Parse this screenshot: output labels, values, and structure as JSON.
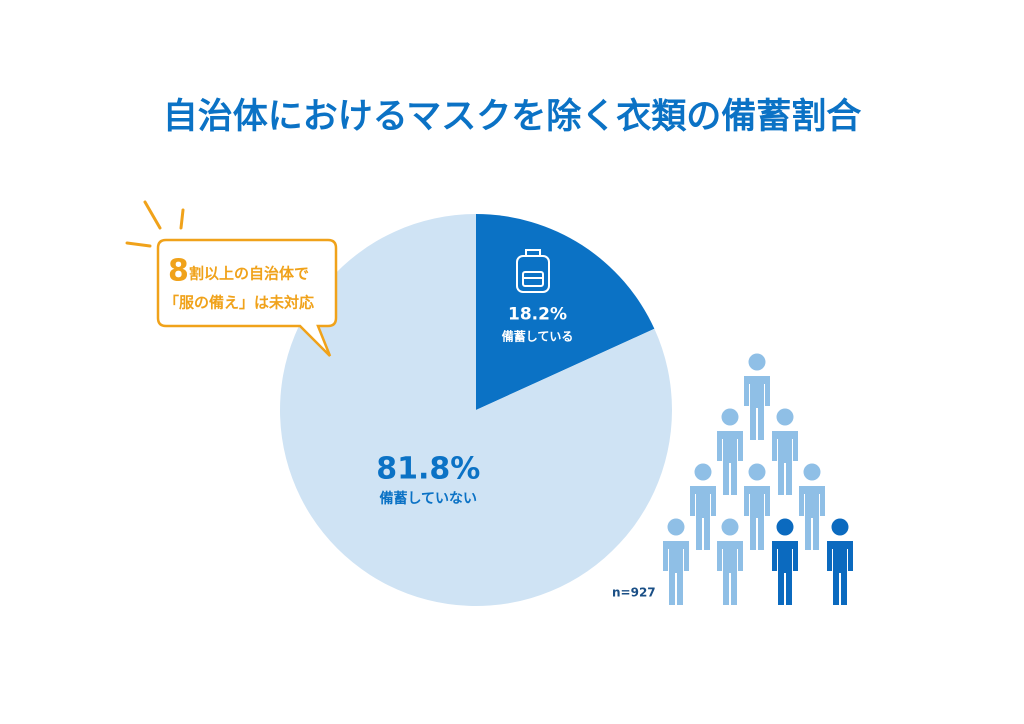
{
  "chart_data": {
    "type": "pie",
    "title": "自治体におけるマスクを除く衣類の備蓄割合",
    "categories": [
      "備蓄している",
      "備蓄していない"
    ],
    "values": [
      18.2,
      81.8
    ],
    "value_labels": [
      "18.2%",
      "81.8%"
    ],
    "colors": [
      "#0b72c5",
      "#cfe3f4"
    ],
    "callout": [
      "8",
      "割以上の自治体で",
      "「服の備え」は未対応"
    ],
    "sample_label": "n=927"
  }
}
